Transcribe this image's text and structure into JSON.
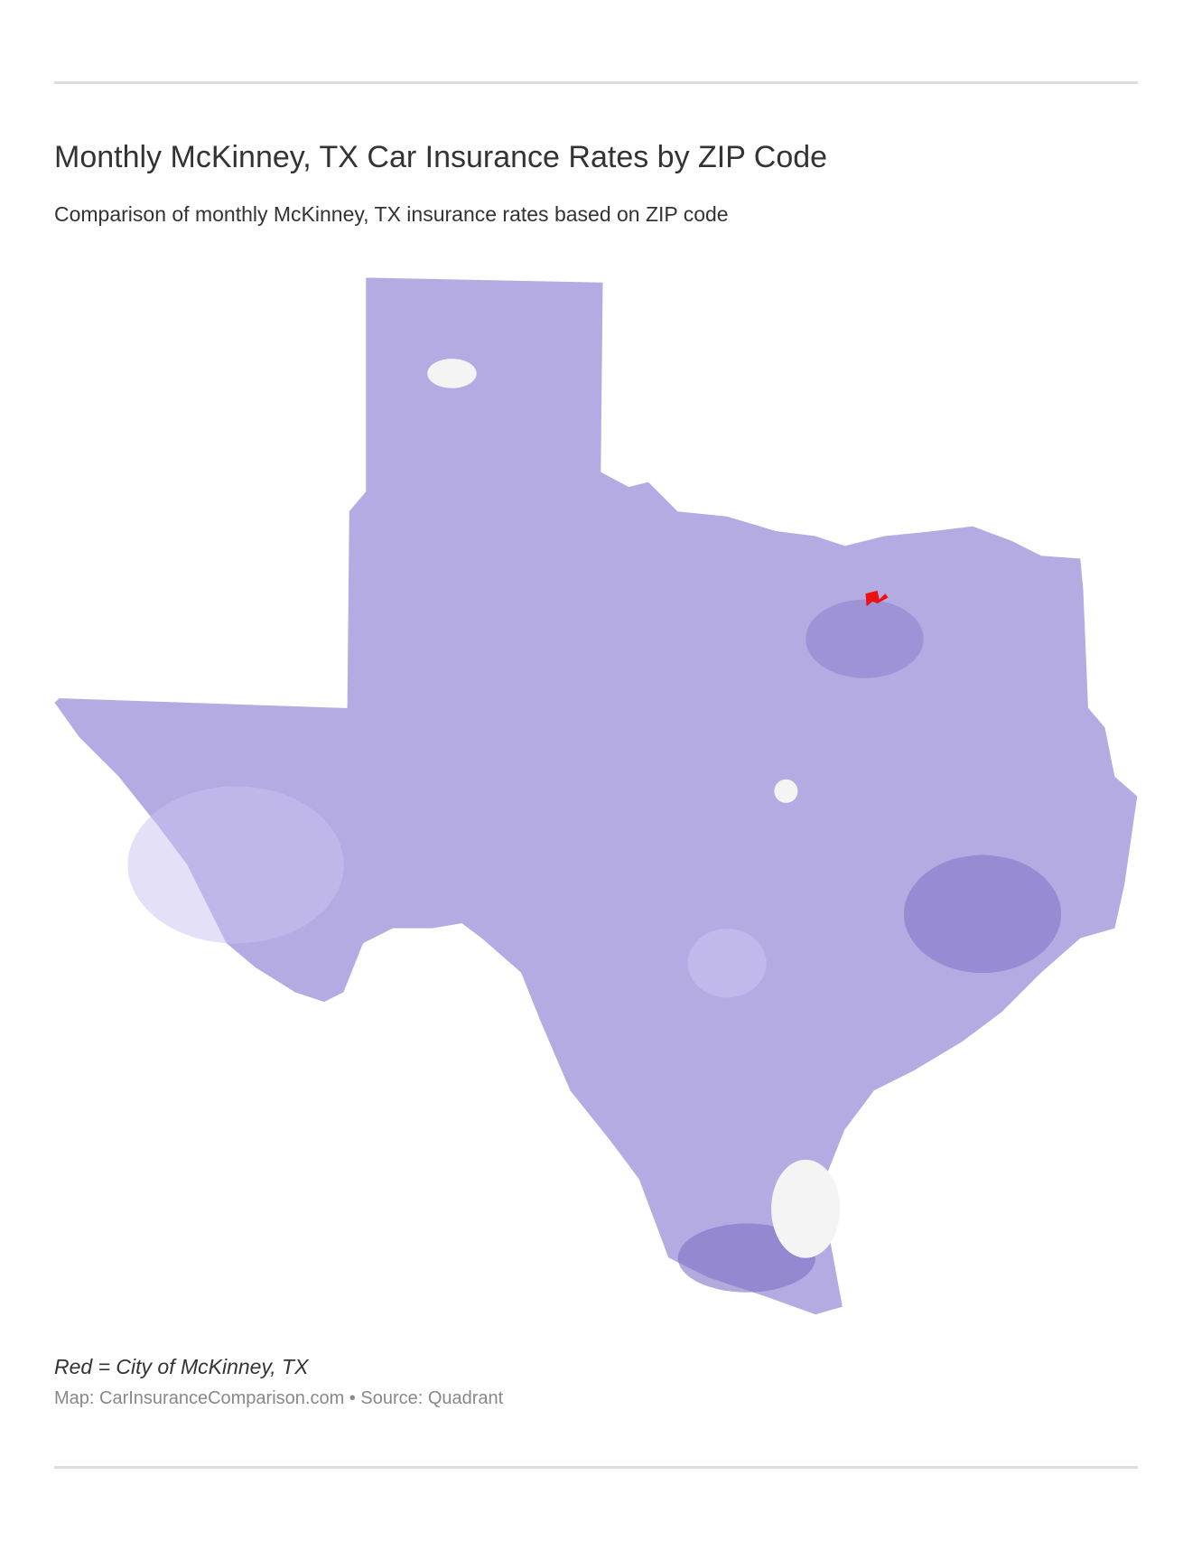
{
  "header": {
    "title": "Monthly McKinney, TX Car Insurance Rates by ZIP Code",
    "subtitle": "Comparison of monthly McKinney, TX insurance rates based on ZIP code"
  },
  "footer": {
    "note": "Red = City of McKinney, TX",
    "source": "Map: CarInsuranceComparison.com • Source: Quadrant"
  }
}
